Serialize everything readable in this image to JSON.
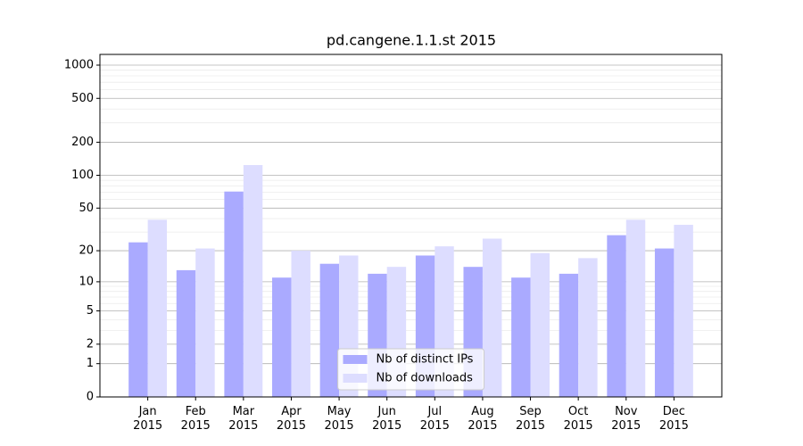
{
  "chart_data": {
    "type": "bar",
    "title": "pd.cangene.1.1.st 2015",
    "categories": [
      "Jan 2015",
      "Feb 2015",
      "Mar 2015",
      "Apr 2015",
      "May 2015",
      "Jun 2015",
      "Jul 2015",
      "Aug 2015",
      "Sep 2015",
      "Oct 2015",
      "Nov 2015",
      "Dec 2015"
    ],
    "series": [
      {
        "name": "Nb of distinct IPs",
        "color": "#aaaaff",
        "values": [
          24,
          13,
          71,
          11,
          15,
          12,
          18,
          14,
          11,
          12,
          28,
          21
        ]
      },
      {
        "name": "Nb of downloads",
        "color": "#ddddff",
        "values": [
          39,
          21,
          124,
          20,
          18,
          14,
          22,
          26,
          19,
          17,
          39,
          35
        ]
      }
    ],
    "yscale": "log1p",
    "ylim": [
      0,
      1250
    ],
    "yticks": [
      0,
      1,
      2,
      5,
      10,
      20,
      50,
      100,
      200,
      500,
      1000
    ],
    "yminor": [
      3,
      4,
      6,
      7,
      8,
      9,
      30,
      40,
      60,
      70,
      80,
      90,
      300,
      400,
      600,
      700,
      800,
      900
    ],
    "grid": true,
    "legend": "lower center"
  }
}
